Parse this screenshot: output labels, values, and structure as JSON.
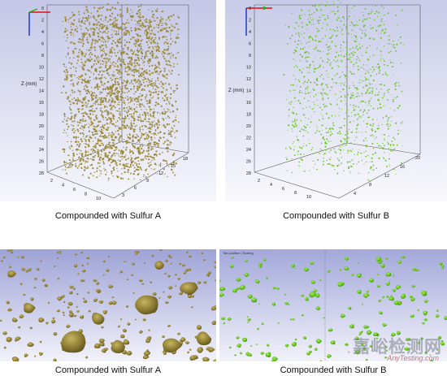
{
  "panels": {
    "a_3d": {
      "caption": "Compounded with Sulfur A",
      "z_axis_label": "Z (mm)",
      "z_ticks": [
        "0",
        "2",
        "4",
        "6",
        "8",
        "10",
        "12",
        "14",
        "16",
        "18",
        "20",
        "22",
        "24",
        "26",
        "28"
      ],
      "x_ticks": [
        "2",
        "4",
        "6",
        "8",
        "10"
      ],
      "y_ticks": [
        "3",
        "6",
        "9",
        "12",
        "15",
        "18"
      ],
      "particle_color": "#9c8a3a"
    },
    "b_3d": {
      "caption": "Compounded with Sulfur B",
      "z_axis_label": "Z (mm)",
      "z_ticks": [
        "0",
        "2",
        "4",
        "6",
        "8",
        "10",
        "12",
        "14",
        "16",
        "18",
        "20",
        "22",
        "24",
        "26",
        "28"
      ],
      "x_ticks": [
        "2",
        "4",
        "6",
        "8",
        "10"
      ],
      "y_ticks": [
        "4",
        "8",
        "12",
        "16",
        "20"
      ],
      "particle_color": "#66c41e"
    },
    "a_zoom": {
      "caption": "Compounded with Sulfur A",
      "particle_color": "#8d7c32"
    },
    "b_zoom": {
      "caption": "Compounded with Sulfur B",
      "hud_text": "Tab position | Scaling",
      "particle_color": "#5fc218"
    }
  },
  "watermark": {
    "cn": "嘉峪检测网",
    "url": "AnyTesting.com"
  },
  "colors": {
    "bg_top": "#c4c7e6",
    "bg_bottom": "#f6f6fb",
    "axis_x": "#e01010",
    "axis_y": "#18b818",
    "axis_z": "#1030d0"
  }
}
